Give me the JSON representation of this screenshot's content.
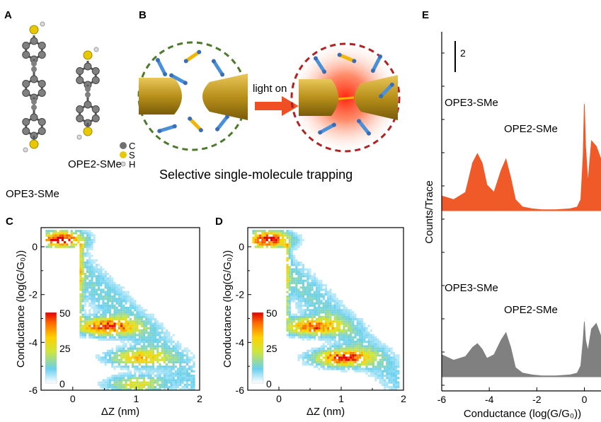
{
  "panels": {
    "a": {
      "label": "A",
      "molecule1": "OPE3-SMe",
      "molecule2": "OPE2-SMe",
      "legend": [
        "C",
        "S",
        "H"
      ]
    },
    "b": {
      "label": "B",
      "arrow_label": "light on",
      "caption": "Selective single-molecule trapping"
    },
    "c": {
      "label": "C"
    },
    "d": {
      "label": "D"
    },
    "e": {
      "label": "E"
    }
  },
  "colors": {
    "red_hist": "#f05a28",
    "gray_hist": "#808080",
    "gold": "#c9a227",
    "blue_molecule": "#4a90d9",
    "yellow_molecule": "#f2b705",
    "green_dash": "#4d7a2a",
    "red_dash": "#b22222",
    "arrow": "#f04e23"
  },
  "chart_data": [
    {
      "panel": "C",
      "type": "heatmap",
      "xlabel": "ΔZ (nm)",
      "ylabel": "Conductance (log(G/G₀))",
      "xlim": [
        -0.5,
        2
      ],
      "ylim": [
        -6,
        0.8
      ],
      "xticks": [
        0,
        1,
        2
      ],
      "yticks": [
        0,
        -2,
        -4,
        -6
      ],
      "colorbar": {
        "ticks": [
          50,
          25,
          0
        ]
      },
      "clusters": [
        {
          "x": -0.2,
          "y": 0.35,
          "intensity": 50
        },
        {
          "x": 0.5,
          "y": -3.3,
          "intensity": 45
        },
        {
          "x": 1.0,
          "y": -4.6,
          "intensity": 30
        },
        {
          "x": 1.0,
          "y": -5.7,
          "intensity": 25
        }
      ]
    },
    {
      "panel": "D",
      "type": "heatmap",
      "xlabel": "ΔZ (nm)",
      "ylabel": "Conductance (log(G/G₀))",
      "xlim": [
        -0.5,
        2
      ],
      "ylim": [
        -6,
        0.8
      ],
      "xticks": [
        0,
        1,
        2
      ],
      "yticks": [
        0,
        -2,
        -4,
        -6
      ],
      "colorbar": {
        "ticks": [
          50,
          25,
          0
        ]
      },
      "clusters": [
        {
          "x": -0.2,
          "y": 0.35,
          "intensity": 50
        },
        {
          "x": 0.5,
          "y": -3.3,
          "intensity": 40
        },
        {
          "x": 1.0,
          "y": -4.6,
          "intensity": 45
        }
      ]
    },
    {
      "panel": "E",
      "type": "area",
      "xlabel": "Conductance (log(G/G₀))",
      "ylabel": "Counts/Trace",
      "xlim": [
        -6,
        0.7
      ],
      "xticks": [
        -6,
        -4,
        -2,
        0
      ],
      "scalebar": "2",
      "series": [
        {
          "name": "OPE3-SMe",
          "name2": "OPE2-SMe",
          "color": "#f05a28",
          "x": [
            -6,
            -5.5,
            -5.0,
            -4.7,
            -4.5,
            -4.3,
            -4.1,
            -3.8,
            -3.5,
            -3.3,
            -3.1,
            -2.9,
            -2.6,
            -2.2,
            -1.8,
            -1.2,
            -0.6,
            -0.3,
            -0.15,
            -0.05,
            0.0,
            0.05,
            0.15,
            0.3,
            0.5,
            0.7
          ],
          "y": [
            0.8,
            0.6,
            1.0,
            2.6,
            3.1,
            2.6,
            1.4,
            1.0,
            2.2,
            2.8,
            1.8,
            0.6,
            0.2,
            0.1,
            0.05,
            0.05,
            0.1,
            0.2,
            0.6,
            3.0,
            5.8,
            3.5,
            1.5,
            3.8,
            3.5,
            2.8
          ]
        },
        {
          "name": "OPE3-SMe",
          "name2": "OPE2-SMe",
          "color": "#808080",
          "x": [
            -6,
            -5.5,
            -5.0,
            -4.7,
            -4.5,
            -4.3,
            -4.1,
            -3.8,
            -3.5,
            -3.3,
            -3.1,
            -2.9,
            -2.6,
            -2.2,
            -1.8,
            -1.2,
            -0.6,
            -0.3,
            -0.15,
            -0.05,
            0.0,
            0.05,
            0.15,
            0.3,
            0.5,
            0.7
          ],
          "y": [
            1.2,
            0.9,
            1.1,
            1.6,
            1.8,
            1.5,
            1.0,
            1.2,
            2.0,
            2.4,
            1.6,
            0.5,
            0.2,
            0.1,
            0.05,
            0.05,
            0.1,
            0.2,
            0.6,
            2.0,
            3.0,
            2.0,
            1.4,
            2.6,
            2.9,
            2.2
          ]
        }
      ]
    }
  ]
}
